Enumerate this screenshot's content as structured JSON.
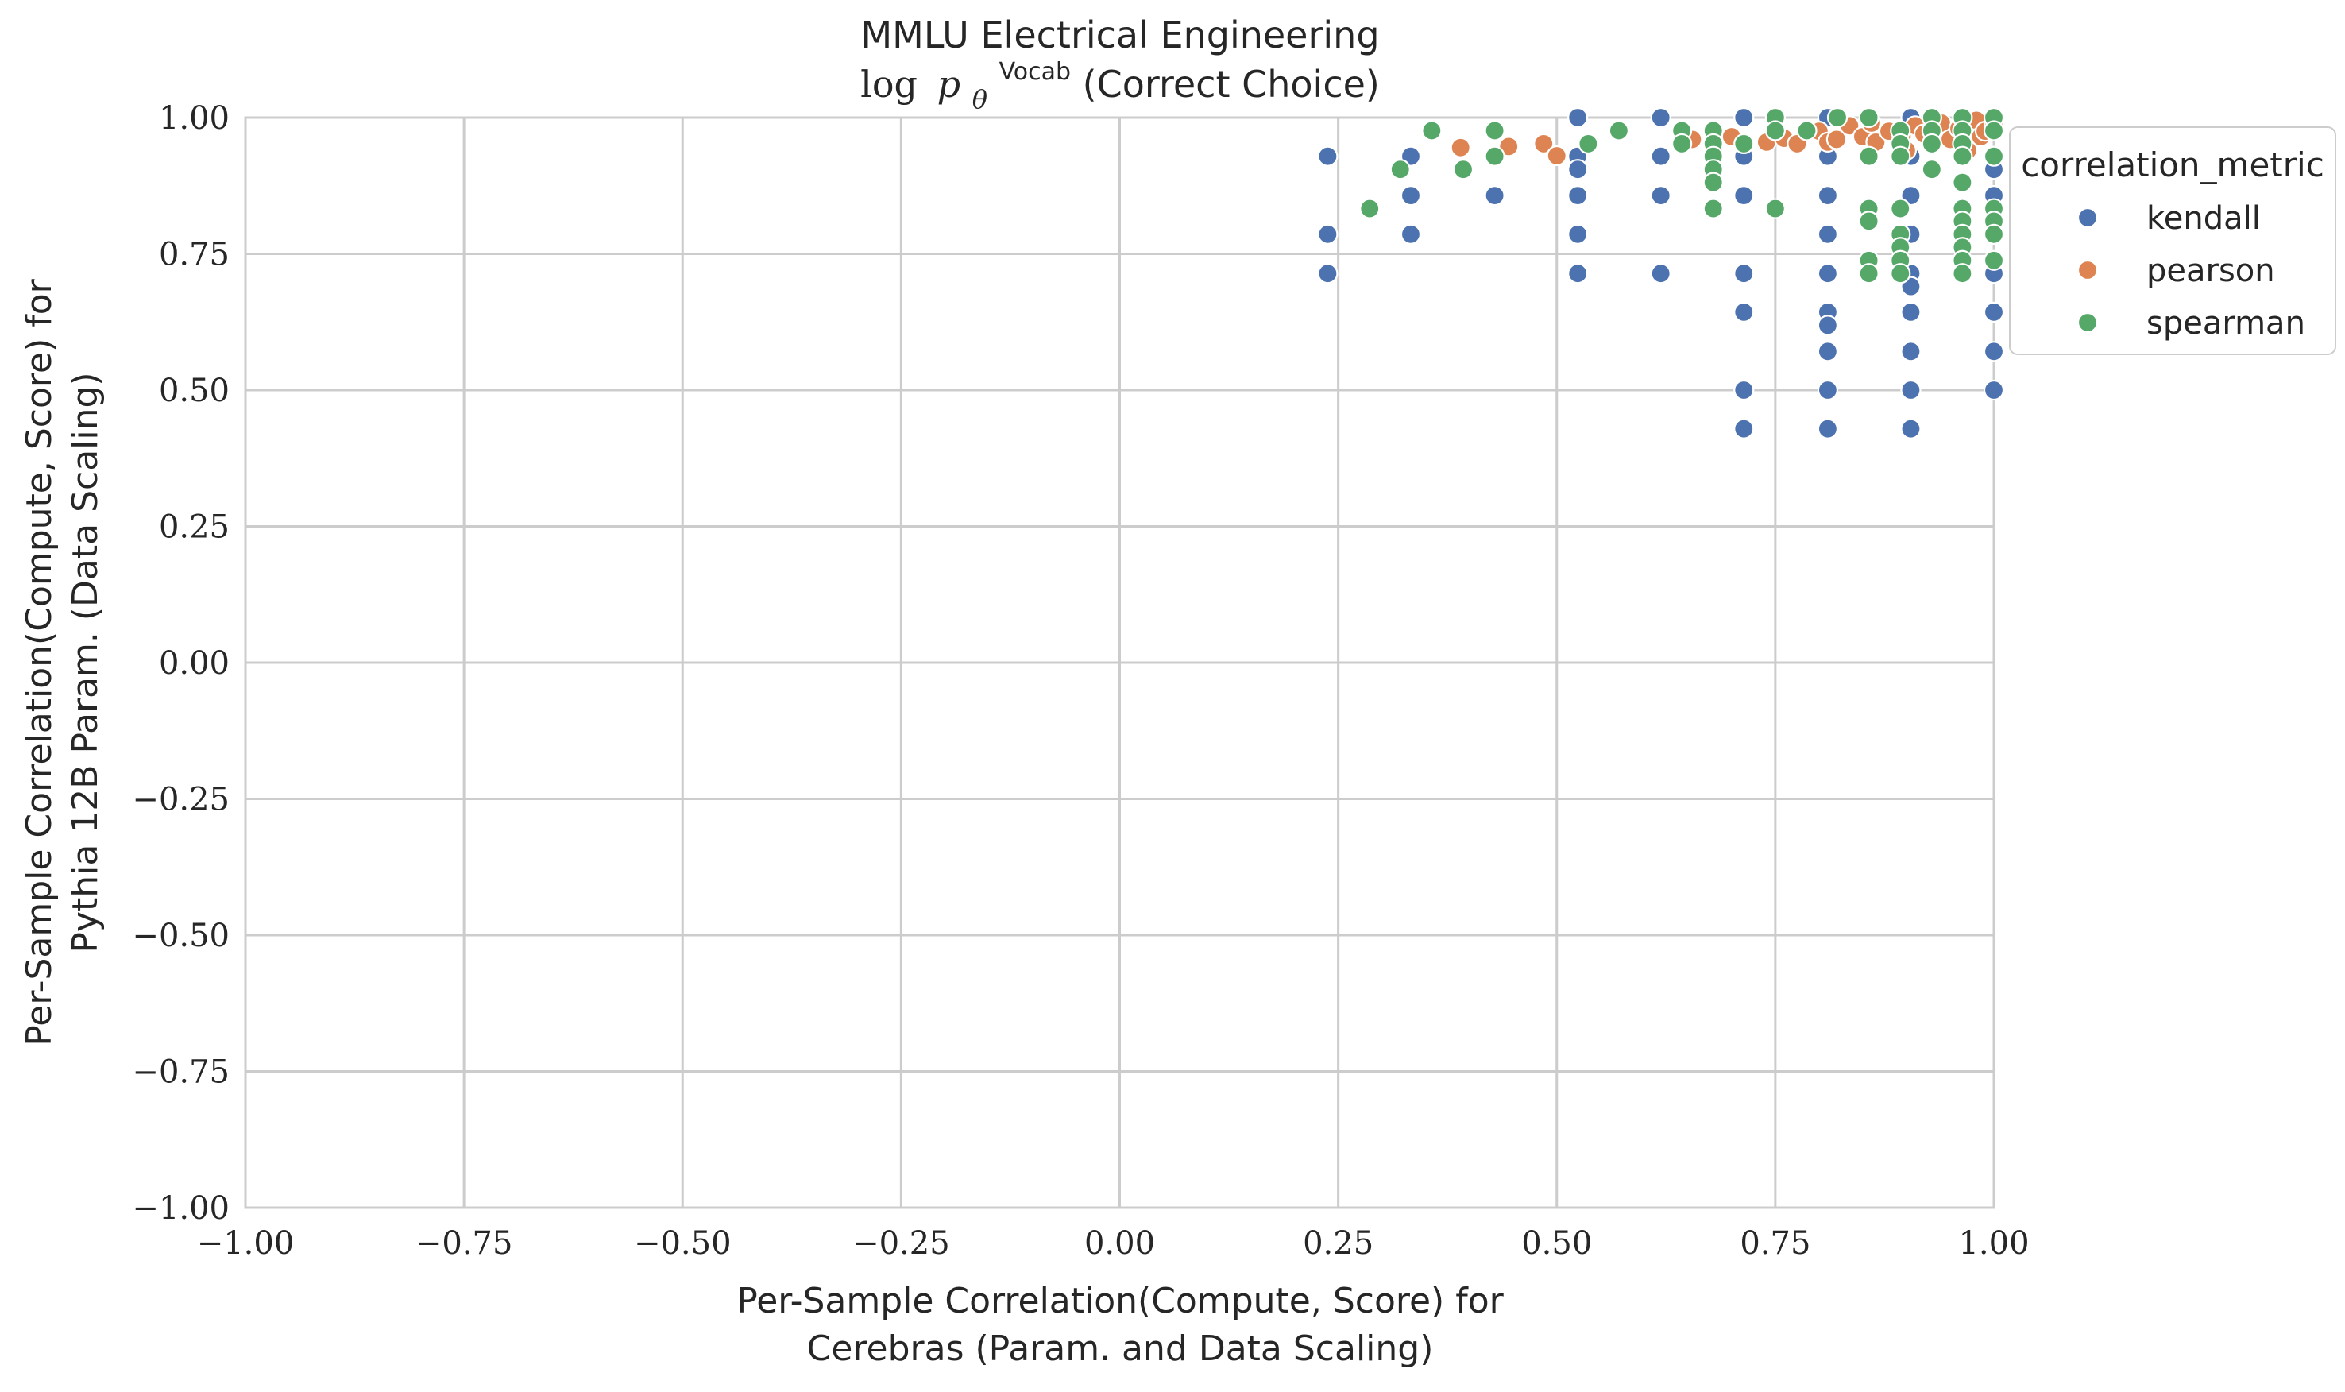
{
  "chart_data": {
    "type": "scatter",
    "title_line1": "MMLU Electrical Engineering",
    "title_line2": {
      "log": "log",
      "p": "p",
      "theta": "θ",
      "superscript": "Vocab",
      "rest": "(Correct Choice)"
    },
    "xlabel_line1": "Per-Sample Correlation(Compute, Score) for",
    "xlabel_line2": "Cerebras (Param. and Data Scaling)",
    "ylabel_line1": "Per-Sample Correlation(Compute, Score) for",
    "ylabel_line2": "Pythia 12B Param. (Data Scaling)",
    "xlim": [
      -1.0,
      1.0
    ],
    "ylim": [
      -1.0,
      1.0
    ],
    "xticks": [
      "−1.00",
      "−0.75",
      "−0.50",
      "−0.25",
      "0.00",
      "0.25",
      "0.50",
      "0.75",
      "1.00"
    ],
    "yticks": [
      "−1.00",
      "−0.75",
      "−0.50",
      "−0.25",
      "0.00",
      "0.25",
      "0.50",
      "0.75",
      "1.00"
    ],
    "grid": true,
    "legend": {
      "title": "correlation_metric",
      "placement": "outside-right-top"
    },
    "series": [
      {
        "name": "kendall",
        "color": "#4c72b0",
        "points": [
          [
            0.238,
            0.929
          ],
          [
            0.238,
            0.786
          ],
          [
            0.238,
            0.714
          ],
          [
            0.333,
            0.929
          ],
          [
            0.333,
            0.857
          ],
          [
            0.333,
            0.786
          ],
          [
            0.429,
            0.857
          ],
          [
            0.524,
            1.0
          ],
          [
            0.524,
            0.929
          ],
          [
            0.524,
            0.905
          ],
          [
            0.524,
            0.857
          ],
          [
            0.524,
            0.786
          ],
          [
            0.524,
            0.714
          ],
          [
            0.619,
            1.0
          ],
          [
            0.619,
            0.929
          ],
          [
            0.619,
            0.857
          ],
          [
            0.619,
            0.714
          ],
          [
            0.714,
            1.0
          ],
          [
            0.714,
            0.929
          ],
          [
            0.714,
            0.857
          ],
          [
            0.714,
            0.714
          ],
          [
            0.714,
            0.643
          ],
          [
            0.714,
            0.5
          ],
          [
            0.714,
            0.429
          ],
          [
            0.81,
            1.0
          ],
          [
            0.81,
            0.929
          ],
          [
            0.81,
            0.857
          ],
          [
            0.81,
            0.786
          ],
          [
            0.81,
            0.714
          ],
          [
            0.81,
            0.643
          ],
          [
            0.81,
            0.619
          ],
          [
            0.81,
            0.571
          ],
          [
            0.81,
            0.5
          ],
          [
            0.81,
            0.429
          ],
          [
            0.905,
            1.0
          ],
          [
            0.905,
            0.929
          ],
          [
            0.905,
            0.857
          ],
          [
            0.905,
            0.786
          ],
          [
            0.905,
            0.714
          ],
          [
            0.905,
            0.69
          ],
          [
            0.905,
            0.643
          ],
          [
            0.905,
            0.571
          ],
          [
            0.905,
            0.5
          ],
          [
            0.905,
            0.429
          ],
          [
            1.0,
            1.0
          ],
          [
            1.0,
            0.929
          ],
          [
            1.0,
            0.905
          ],
          [
            1.0,
            0.857
          ],
          [
            1.0,
            0.786
          ],
          [
            1.0,
            0.714
          ],
          [
            1.0,
            0.643
          ],
          [
            1.0,
            0.571
          ],
          [
            1.0,
            0.5
          ]
        ]
      },
      {
        "name": "pearson",
        "color": "#dd8452",
        "points": [
          [
            0.39,
            0.945
          ],
          [
            0.445,
            0.947
          ],
          [
            0.485,
            0.952
          ],
          [
            0.5,
            0.93
          ],
          [
            0.655,
            0.96
          ],
          [
            0.68,
            0.948
          ],
          [
            0.7,
            0.965
          ],
          [
            0.74,
            0.955
          ],
          [
            0.76,
            0.962
          ],
          [
            0.775,
            0.952
          ],
          [
            0.8,
            0.975
          ],
          [
            0.81,
            0.955
          ],
          [
            0.82,
            0.96
          ],
          [
            0.835,
            0.985
          ],
          [
            0.85,
            0.965
          ],
          [
            0.86,
            0.99
          ],
          [
            0.865,
            0.955
          ],
          [
            0.88,
            0.975
          ],
          [
            0.895,
            0.965
          ],
          [
            0.9,
            0.94
          ],
          [
            0.91,
            0.985
          ],
          [
            0.92,
            0.97
          ],
          [
            0.93,
            0.95
          ],
          [
            0.94,
            0.99
          ],
          [
            0.95,
            0.96
          ],
          [
            0.96,
            0.98
          ],
          [
            0.97,
            0.94
          ],
          [
            0.98,
            0.995
          ],
          [
            0.985,
            0.965
          ],
          [
            0.99,
            0.975
          ],
          [
            1.0,
            0.99
          ]
        ]
      },
      {
        "name": "spearman",
        "color": "#55a868",
        "points": [
          [
            0.286,
            0.833
          ],
          [
            0.321,
            0.905
          ],
          [
            0.357,
            0.976
          ],
          [
            0.393,
            0.905
          ],
          [
            0.429,
            0.976
          ],
          [
            0.429,
            0.929
          ],
          [
            0.536,
            0.952
          ],
          [
            0.571,
            0.976
          ],
          [
            0.643,
            0.976
          ],
          [
            0.643,
            0.952
          ],
          [
            0.679,
            0.976
          ],
          [
            0.679,
            0.952
          ],
          [
            0.679,
            0.929
          ],
          [
            0.679,
            0.905
          ],
          [
            0.679,
            0.881
          ],
          [
            0.679,
            0.833
          ],
          [
            0.714,
            0.952
          ],
          [
            0.75,
            1.0
          ],
          [
            0.75,
            0.976
          ],
          [
            0.75,
            0.833
          ],
          [
            0.786,
            0.976
          ],
          [
            0.821,
            1.0
          ],
          [
            0.857,
            1.0
          ],
          [
            0.857,
            0.929
          ],
          [
            0.857,
            0.833
          ],
          [
            0.857,
            0.81
          ],
          [
            0.857,
            0.738
          ],
          [
            0.857,
            0.714
          ],
          [
            0.893,
            0.976
          ],
          [
            0.893,
            0.952
          ],
          [
            0.893,
            0.929
          ],
          [
            0.893,
            0.833
          ],
          [
            0.893,
            0.786
          ],
          [
            0.893,
            0.762
          ],
          [
            0.893,
            0.738
          ],
          [
            0.893,
            0.714
          ],
          [
            0.929,
            1.0
          ],
          [
            0.929,
            0.976
          ],
          [
            0.929,
            0.952
          ],
          [
            0.929,
            0.905
          ],
          [
            0.964,
            1.0
          ],
          [
            0.964,
            0.976
          ],
          [
            0.964,
            0.952
          ],
          [
            0.964,
            0.929
          ],
          [
            0.964,
            0.881
          ],
          [
            0.964,
            0.833
          ],
          [
            0.964,
            0.81
          ],
          [
            0.964,
            0.786
          ],
          [
            0.964,
            0.762
          ],
          [
            0.964,
            0.738
          ],
          [
            0.964,
            0.714
          ],
          [
            1.0,
            1.0
          ],
          [
            1.0,
            0.976
          ],
          [
            1.0,
            0.929
          ],
          [
            1.0,
            0.833
          ],
          [
            1.0,
            0.81
          ],
          [
            1.0,
            0.786
          ],
          [
            1.0,
            0.738
          ]
        ]
      }
    ]
  }
}
